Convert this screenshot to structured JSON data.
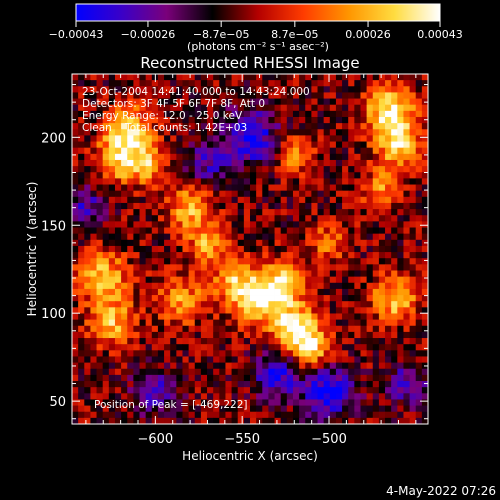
{
  "chart_data": {
    "type": "heatmap",
    "title": "Reconstructed RHESSI Image",
    "xlabel": "Heliocentric X (arcsec)",
    "ylabel": "Heliocentric Y (arcsec)",
    "x_ticks": [
      -600,
      -550,
      -500
    ],
    "x_tick_labels": [
      "−600",
      "−550",
      "−500"
    ],
    "y_ticks": [
      50,
      100,
      150,
      200
    ],
    "y_tick_labels": [
      "50",
      "100",
      "150",
      "200"
    ],
    "xlim": [
      -648,
      -443
    ],
    "ylim": [
      37,
      236
    ],
    "colorbar": {
      "ticks": [
        -0.00043,
        -0.00026,
        -8.7e-05,
        8.7e-05,
        0.00026,
        0.00043
      ],
      "tick_labels": [
        "−0.00043",
        "−0.00026",
        "−8.7e−05",
        "8.7e−05",
        "0.00026",
        "0.00043"
      ],
      "range": [
        -0.00043,
        0.00043
      ],
      "colors": [
        "#0000ff",
        "#3a00c8",
        "#7a007a",
        "#000000",
        "#b40000",
        "#ff3c00",
        "#ff9600",
        "#ffdc40",
        "#ffffff"
      ],
      "unit_label": "(photons cm⁻² s⁻¹ asec⁻²)"
    },
    "annotations": [
      "23-Oct-2004 14:41:40.000 to 14:43:24.000",
      "Detectors: 3F 4F 5F 6F 7F 8F, Att 0",
      "Energy Range: 12.0 - 25.0 keV",
      "Clean    Total counts: 1.42E+03"
    ],
    "peak_label": "Position of Peak = [-469,222]",
    "hot_regions": [
      {
        "x": -615,
        "y": 205,
        "value": 0.00038,
        "spread": 9
      },
      {
        "x": -622,
        "y": 188,
        "value": 0.00034,
        "spread": 9
      },
      {
        "x": -605,
        "y": 185,
        "value": 0.0003,
        "spread": 8
      },
      {
        "x": -580,
        "y": 160,
        "value": 0.00032,
        "spread": 9
      },
      {
        "x": -570,
        "y": 140,
        "value": 0.00028,
        "spread": 8
      },
      {
        "x": -630,
        "y": 120,
        "value": 0.00036,
        "spread": 10
      },
      {
        "x": -625,
        "y": 95,
        "value": 0.00032,
        "spread": 9
      },
      {
        "x": -585,
        "y": 108,
        "value": 0.00026,
        "spread": 10
      },
      {
        "x": -555,
        "y": 118,
        "value": 0.00028,
        "spread": 9
      },
      {
        "x": -540,
        "y": 108,
        "value": 0.0004,
        "spread": 10
      },
      {
        "x": -525,
        "y": 118,
        "value": 0.00036,
        "spread": 9
      },
      {
        "x": -520,
        "y": 92,
        "value": 0.00043,
        "spread": 9
      },
      {
        "x": -510,
        "y": 80,
        "value": 0.00034,
        "spread": 8
      },
      {
        "x": -465,
        "y": 215,
        "value": 0.00042,
        "spread": 10
      },
      {
        "x": -460,
        "y": 195,
        "value": 0.00036,
        "spread": 9
      },
      {
        "x": -470,
        "y": 170,
        "value": 0.00026,
        "spread": 8
      },
      {
        "x": -462,
        "y": 108,
        "value": 0.00036,
        "spread": 9
      },
      {
        "x": -500,
        "y": 140,
        "value": 0.00022,
        "spread": 8
      },
      {
        "x": -520,
        "y": 190,
        "value": 0.00024,
        "spread": 8
      }
    ],
    "cold_regions": [
      {
        "x": -500,
        "y": 55,
        "value": -0.0004,
        "spread": 10
      },
      {
        "x": -530,
        "y": 65,
        "value": -0.00034,
        "spread": 9
      },
      {
        "x": -545,
        "y": 200,
        "value": -0.00036,
        "spread": 11
      },
      {
        "x": -570,
        "y": 185,
        "value": -0.00022,
        "spread": 9
      },
      {
        "x": -600,
        "y": 55,
        "value": -0.00026,
        "spread": 9
      },
      {
        "x": -455,
        "y": 60,
        "value": -0.00026,
        "spread": 8
      },
      {
        "x": -640,
        "y": 160,
        "value": -0.00024,
        "spread": 8
      }
    ]
  },
  "timestamp": "4-May-2022 07:26"
}
